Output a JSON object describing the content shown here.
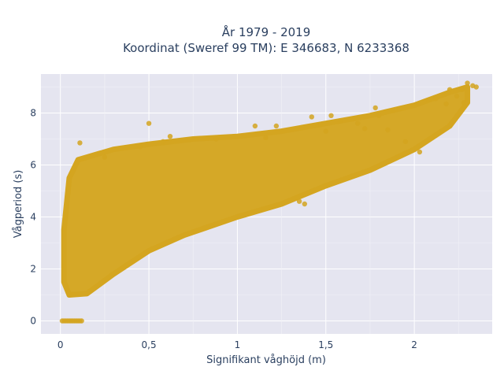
{
  "chart_data": {
    "type": "scatter",
    "title": "År 1979 - 2019",
    "subtitle": "Koordinat (Sweref 99 TM): E 346683, N 6233368",
    "xlabel": "Signifikant våghöjd (m)",
    "ylabel": "Vågperiod (s)",
    "xlim": [
      -0.11,
      2.44
    ],
    "ylim": [
      -0.5,
      9.5
    ],
    "x_ticks": [
      0,
      0.5,
      1,
      1.5,
      2
    ],
    "x_tick_labels": [
      "0",
      "0,5",
      "1",
      "1,5",
      "2"
    ],
    "y_ticks": [
      0,
      2,
      4,
      6,
      8
    ],
    "y_tick_labels": [
      "0",
      "2",
      "4",
      "6",
      "8"
    ],
    "grid": true,
    "marker_color": "#d4a520",
    "plot_background": "#e5e5f0",
    "cloud": {
      "lower_boundary": [
        [
          0.02,
          1.5
        ],
        [
          0.05,
          1.0
        ],
        [
          0.15,
          1.05
        ],
        [
          0.3,
          1.8
        ],
        [
          0.5,
          2.7
        ],
        [
          0.7,
          3.3
        ],
        [
          1.0,
          4.0
        ],
        [
          1.25,
          4.5
        ],
        [
          1.5,
          5.2
        ],
        [
          1.75,
          5.8
        ],
        [
          2.0,
          6.6
        ],
        [
          2.2,
          7.5
        ],
        [
          2.3,
          8.4
        ]
      ],
      "upper_boundary": [
        [
          0.02,
          3.5
        ],
        [
          0.05,
          5.5
        ],
        [
          0.1,
          6.2
        ],
        [
          0.3,
          6.6
        ],
        [
          0.5,
          6.8
        ],
        [
          0.75,
          7.0
        ],
        [
          1.0,
          7.1
        ],
        [
          1.25,
          7.3
        ],
        [
          1.5,
          7.6
        ],
        [
          1.75,
          7.9
        ],
        [
          2.0,
          8.3
        ],
        [
          2.2,
          8.8
        ],
        [
          2.3,
          9.0
        ]
      ]
    },
    "zero_period_points": {
      "x_min": 0.01,
      "x_max": 0.12,
      "y": 0
    },
    "outliers": [
      [
        0.11,
        6.85
      ],
      [
        0.25,
        6.3
      ],
      [
        0.45,
        6.7
      ],
      [
        0.5,
        7.6
      ],
      [
        0.58,
        6.9
      ],
      [
        0.62,
        7.1
      ],
      [
        0.88,
        7.0
      ],
      [
        1.1,
        7.5
      ],
      [
        1.16,
        7.05
      ],
      [
        1.22,
        7.5
      ],
      [
        1.35,
        4.6
      ],
      [
        1.38,
        4.5
      ],
      [
        1.42,
        7.85
      ],
      [
        1.47,
        7.55
      ],
      [
        1.5,
        7.3
      ],
      [
        1.53,
        7.9
      ],
      [
        1.58,
        7.7
      ],
      [
        1.68,
        7.6
      ],
      [
        1.72,
        7.4
      ],
      [
        1.78,
        8.2
      ],
      [
        1.8,
        7.9
      ],
      [
        1.85,
        7.35
      ],
      [
        1.88,
        8.1
      ],
      [
        1.95,
        6.9
      ],
      [
        2.03,
        6.5
      ],
      [
        2.08,
        8.5
      ],
      [
        2.12,
        8.55
      ],
      [
        2.18,
        8.35
      ],
      [
        2.2,
        8.9
      ],
      [
        2.24,
        8.65
      ],
      [
        2.27,
        8.9
      ],
      [
        2.3,
        9.15
      ],
      [
        2.33,
        9.05
      ],
      [
        2.35,
        9.0
      ],
      [
        2.28,
        8.4
      ]
    ]
  }
}
